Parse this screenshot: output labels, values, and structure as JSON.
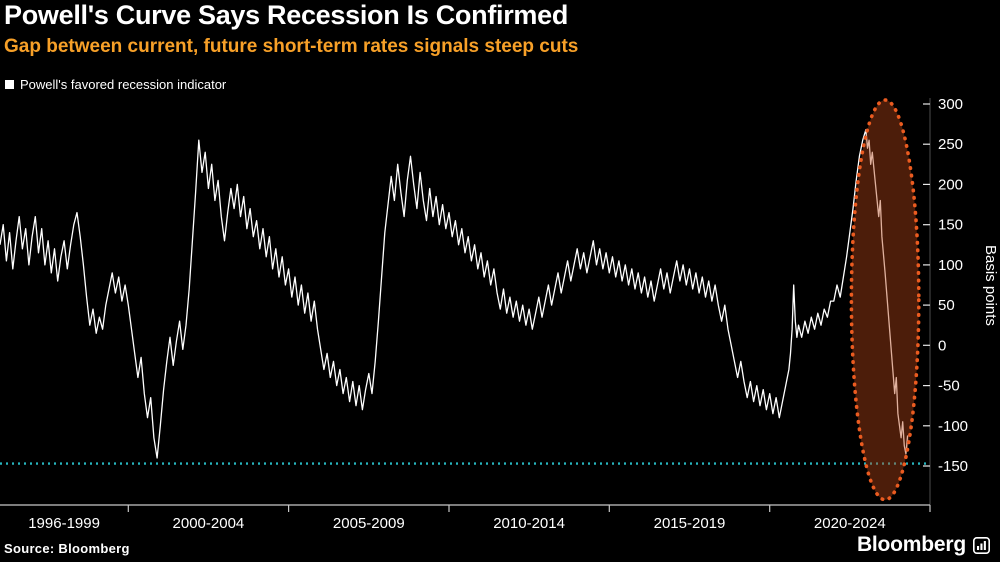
{
  "chart_data": {
    "type": "line",
    "title": "Powell's Curve Says Recession Is Confirmed",
    "subtitle": "Gap between current, future short-term rates signals steep cuts",
    "ylabel": "Basis points",
    "yticks": [
      300,
      250,
      200,
      150,
      100,
      50,
      0,
      -50,
      -100,
      -150
    ],
    "ylim": [
      -150,
      300
    ],
    "xlim": [
      1996,
      2025
    ],
    "x_tick_years": [
      2000,
      2005,
      2010,
      2015,
      2020,
      2025
    ],
    "x_labels": [
      {
        "label": "1996-1999",
        "center_year": 1998.0
      },
      {
        "label": "2000-2004",
        "center_year": 2002.5
      },
      {
        "label": "2005-2009",
        "center_year": 2007.5
      },
      {
        "label": "2010-2014",
        "center_year": 2012.5
      },
      {
        "label": "2015-2019",
        "center_year": 2017.5
      },
      {
        "label": "2020-2024",
        "center_year": 2022.5
      }
    ],
    "grid": false,
    "legend_position": "top-left",
    "reference_line": {
      "value": -147,
      "color": "#27b4bd",
      "style": "dotted"
    },
    "highlight_ellipse": {
      "year_start": 2022.55,
      "year_end": 2024.65,
      "value_top": 305,
      "value_bottom": -192,
      "stroke": "#ea5b20",
      "fill": "rgba(180,70,25,0.42)",
      "style": "dotted"
    },
    "series": [
      {
        "name": "Powell's favored recession indicator",
        "color": "#ffffff",
        "points": [
          [
            1996,
            125
          ],
          [
            1996.1,
            150
          ],
          [
            1996.2,
            105
          ],
          [
            1996.3,
            140
          ],
          [
            1996.4,
            95
          ],
          [
            1996.5,
            130
          ],
          [
            1996.6,
            160
          ],
          [
            1996.7,
            120
          ],
          [
            1996.8,
            145
          ],
          [
            1996.9,
            100
          ],
          [
            1997,
            135
          ],
          [
            1997.1,
            160
          ],
          [
            1997.2,
            115
          ],
          [
            1997.3,
            145
          ],
          [
            1997.4,
            100
          ],
          [
            1997.5,
            130
          ],
          [
            1997.6,
            90
          ],
          [
            1997.7,
            120
          ],
          [
            1997.8,
            80
          ],
          [
            1997.9,
            110
          ],
          [
            1998,
            130
          ],
          [
            1998.1,
            95
          ],
          [
            1998.2,
            125
          ],
          [
            1998.3,
            150
          ],
          [
            1998.4,
            165
          ],
          [
            1998.5,
            135
          ],
          [
            1998.6,
            100
          ],
          [
            1998.7,
            60
          ],
          [
            1998.8,
            25
          ],
          [
            1998.9,
            45
          ],
          [
            1999,
            15
          ],
          [
            1999.1,
            35
          ],
          [
            1999.2,
            20
          ],
          [
            1999.3,
            50
          ],
          [
            1999.4,
            70
          ],
          [
            1999.5,
            90
          ],
          [
            1999.6,
            65
          ],
          [
            1999.7,
            85
          ],
          [
            1999.8,
            55
          ],
          [
            1999.9,
            75
          ],
          [
            2000,
            50
          ],
          [
            2000.1,
            20
          ],
          [
            2000.2,
            -10
          ],
          [
            2000.3,
            -40
          ],
          [
            2000.4,
            -15
          ],
          [
            2000.5,
            -60
          ],
          [
            2000.6,
            -90
          ],
          [
            2000.7,
            -65
          ],
          [
            2000.8,
            -115
          ],
          [
            2000.9,
            -140
          ],
          [
            2001,
            -100
          ],
          [
            2001.1,
            -55
          ],
          [
            2001.2,
            -20
          ],
          [
            2001.3,
            10
          ],
          [
            2001.4,
            -25
          ],
          [
            2001.5,
            5
          ],
          [
            2001.6,
            30
          ],
          [
            2001.7,
            -5
          ],
          [
            2001.8,
            25
          ],
          [
            2001.9,
            70
          ],
          [
            2002,
            130
          ],
          [
            2002.1,
            190
          ],
          [
            2002.2,
            255
          ],
          [
            2002.3,
            215
          ],
          [
            2002.4,
            240
          ],
          [
            2002.5,
            195
          ],
          [
            2002.6,
            225
          ],
          [
            2002.7,
            180
          ],
          [
            2002.8,
            205
          ],
          [
            2002.9,
            160
          ],
          [
            2003,
            130
          ],
          [
            2003.1,
            165
          ],
          [
            2003.2,
            195
          ],
          [
            2003.3,
            170
          ],
          [
            2003.4,
            200
          ],
          [
            2003.5,
            160
          ],
          [
            2003.6,
            185
          ],
          [
            2003.7,
            145
          ],
          [
            2003.8,
            170
          ],
          [
            2003.9,
            135
          ],
          [
            2004,
            155
          ],
          [
            2004.1,
            120
          ],
          [
            2004.2,
            145
          ],
          [
            2004.3,
            110
          ],
          [
            2004.4,
            135
          ],
          [
            2004.5,
            95
          ],
          [
            2004.6,
            120
          ],
          [
            2004.7,
            85
          ],
          [
            2004.8,
            110
          ],
          [
            2004.9,
            75
          ],
          [
            2005,
            95
          ],
          [
            2005.1,
            60
          ],
          [
            2005.2,
            85
          ],
          [
            2005.3,
            50
          ],
          [
            2005.4,
            75
          ],
          [
            2005.5,
            40
          ],
          [
            2005.6,
            65
          ],
          [
            2005.7,
            30
          ],
          [
            2005.8,
            55
          ],
          [
            2005.9,
            20
          ],
          [
            2006,
            -5
          ],
          [
            2006.1,
            -30
          ],
          [
            2006.2,
            -10
          ],
          [
            2006.3,
            -40
          ],
          [
            2006.4,
            -20
          ],
          [
            2006.5,
            -50
          ],
          [
            2006.6,
            -30
          ],
          [
            2006.7,
            -60
          ],
          [
            2006.8,
            -40
          ],
          [
            2006.9,
            -70
          ],
          [
            2007,
            -45
          ],
          [
            2007.1,
            -75
          ],
          [
            2007.2,
            -50
          ],
          [
            2007.3,
            -80
          ],
          [
            2007.4,
            -55
          ],
          [
            2007.5,
            -35
          ],
          [
            2007.6,
            -60
          ],
          [
            2007.7,
            -20
          ],
          [
            2007.8,
            30
          ],
          [
            2007.9,
            85
          ],
          [
            2008,
            140
          ],
          [
            2008.1,
            175
          ],
          [
            2008.2,
            210
          ],
          [
            2008.3,
            180
          ],
          [
            2008.4,
            225
          ],
          [
            2008.5,
            190
          ],
          [
            2008.6,
            160
          ],
          [
            2008.7,
            205
          ],
          [
            2008.8,
            235
          ],
          [
            2008.9,
            200
          ],
          [
            2009,
            170
          ],
          [
            2009.1,
            215
          ],
          [
            2009.2,
            180
          ],
          [
            2009.3,
            155
          ],
          [
            2009.4,
            195
          ],
          [
            2009.5,
            160
          ],
          [
            2009.6,
            185
          ],
          [
            2009.7,
            150
          ],
          [
            2009.8,
            175
          ],
          [
            2009.9,
            145
          ],
          [
            2010,
            165
          ],
          [
            2010.1,
            135
          ],
          [
            2010.2,
            155
          ],
          [
            2010.3,
            125
          ],
          [
            2010.4,
            145
          ],
          [
            2010.5,
            115
          ],
          [
            2010.6,
            135
          ],
          [
            2010.7,
            105
          ],
          [
            2010.8,
            125
          ],
          [
            2010.9,
            95
          ],
          [
            2011,
            115
          ],
          [
            2011.1,
            85
          ],
          [
            2011.2,
            105
          ],
          [
            2011.3,
            75
          ],
          [
            2011.4,
            95
          ],
          [
            2011.5,
            65
          ],
          [
            2011.6,
            45
          ],
          [
            2011.7,
            70
          ],
          [
            2011.8,
            40
          ],
          [
            2011.9,
            60
          ],
          [
            2012,
            35
          ],
          [
            2012.1,
            55
          ],
          [
            2012.2,
            30
          ],
          [
            2012.3,
            50
          ],
          [
            2012.4,
            25
          ],
          [
            2012.5,
            45
          ],
          [
            2012.6,
            20
          ],
          [
            2012.7,
            40
          ],
          [
            2012.8,
            60
          ],
          [
            2012.9,
            35
          ],
          [
            2013,
            55
          ],
          [
            2013.1,
            75
          ],
          [
            2013.2,
            50
          ],
          [
            2013.3,
            70
          ],
          [
            2013.4,
            90
          ],
          [
            2013.5,
            65
          ],
          [
            2013.6,
            85
          ],
          [
            2013.7,
            105
          ],
          [
            2013.8,
            80
          ],
          [
            2013.9,
            100
          ],
          [
            2014,
            120
          ],
          [
            2014.1,
            95
          ],
          [
            2014.2,
            115
          ],
          [
            2014.3,
            90
          ],
          [
            2014.4,
            110
          ],
          [
            2014.5,
            130
          ],
          [
            2014.6,
            100
          ],
          [
            2014.7,
            120
          ],
          [
            2014.8,
            95
          ],
          [
            2014.9,
            115
          ],
          [
            2015,
            90
          ],
          [
            2015.1,
            110
          ],
          [
            2015.2,
            85
          ],
          [
            2015.3,
            105
          ],
          [
            2015.4,
            80
          ],
          [
            2015.5,
            100
          ],
          [
            2015.6,
            75
          ],
          [
            2015.7,
            95
          ],
          [
            2015.8,
            70
          ],
          [
            2015.9,
            90
          ],
          [
            2016,
            65
          ],
          [
            2016.1,
            85
          ],
          [
            2016.2,
            60
          ],
          [
            2016.3,
            80
          ],
          [
            2016.4,
            55
          ],
          [
            2016.5,
            75
          ],
          [
            2016.6,
            95
          ],
          [
            2016.7,
            70
          ],
          [
            2016.8,
            90
          ],
          [
            2016.9,
            65
          ],
          [
            2017,
            85
          ],
          [
            2017.1,
            105
          ],
          [
            2017.2,
            80
          ],
          [
            2017.3,
            100
          ],
          [
            2017.4,
            75
          ],
          [
            2017.5,
            95
          ],
          [
            2017.6,
            70
          ],
          [
            2017.7,
            90
          ],
          [
            2017.8,
            65
          ],
          [
            2017.9,
            85
          ],
          [
            2018,
            60
          ],
          [
            2018.1,
            80
          ],
          [
            2018.2,
            55
          ],
          [
            2018.3,
            75
          ],
          [
            2018.4,
            50
          ],
          [
            2018.5,
            30
          ],
          [
            2018.6,
            50
          ],
          [
            2018.7,
            20
          ],
          [
            2018.8,
            0
          ],
          [
            2018.9,
            -20
          ],
          [
            2019,
            -40
          ],
          [
            2019.1,
            -20
          ],
          [
            2019.2,
            -45
          ],
          [
            2019.3,
            -65
          ],
          [
            2019.4,
            -45
          ],
          [
            2019.5,
            -70
          ],
          [
            2019.6,
            -50
          ],
          [
            2019.7,
            -75
          ],
          [
            2019.8,
            -55
          ],
          [
            2019.9,
            -80
          ],
          [
            2020,
            -60
          ],
          [
            2020.1,
            -85
          ],
          [
            2020.2,
            -65
          ],
          [
            2020.3,
            -90
          ],
          [
            2020.4,
            -70
          ],
          [
            2020.5,
            -50
          ],
          [
            2020.6,
            -30
          ],
          [
            2020.65,
            -10
          ],
          [
            2020.7,
            20
          ],
          [
            2020.75,
            75
          ],
          [
            2020.8,
            30
          ],
          [
            2020.85,
            10
          ],
          [
            2020.9,
            25
          ],
          [
            2021,
            10
          ],
          [
            2021.1,
            30
          ],
          [
            2021.2,
            15
          ],
          [
            2021.3,
            35
          ],
          [
            2021.4,
            20
          ],
          [
            2021.5,
            40
          ],
          [
            2021.6,
            25
          ],
          [
            2021.7,
            45
          ],
          [
            2021.8,
            35
          ],
          [
            2021.9,
            55
          ],
          [
            2022,
            55
          ],
          [
            2022.1,
            75
          ],
          [
            2022.2,
            60
          ],
          [
            2022.3,
            85
          ],
          [
            2022.4,
            110
          ],
          [
            2022.5,
            140
          ],
          [
            2022.6,
            170
          ],
          [
            2022.7,
            205
          ],
          [
            2022.8,
            235
          ],
          [
            2022.9,
            255
          ],
          [
            2023,
            268
          ],
          [
            2023.05,
            245
          ],
          [
            2023.1,
            255
          ],
          [
            2023.15,
            225
          ],
          [
            2023.2,
            240
          ],
          [
            2023.3,
            200
          ],
          [
            2023.4,
            160
          ],
          [
            2023.45,
            180
          ],
          [
            2023.5,
            135
          ],
          [
            2023.6,
            90
          ],
          [
            2023.7,
            40
          ],
          [
            2023.8,
            -10
          ],
          [
            2023.9,
            -60
          ],
          [
            2023.95,
            -40
          ],
          [
            2024,
            -85
          ],
          [
            2024.1,
            -115
          ],
          [
            2024.15,
            -95
          ],
          [
            2024.2,
            -125
          ],
          [
            2024.25,
            -135
          ],
          [
            2024.3,
            -112
          ]
        ]
      }
    ]
  },
  "footer": {
    "source": "Source: Bloomberg",
    "brand": "Bloomberg"
  },
  "colors": {
    "background": "#000000",
    "title": "#ffffff",
    "subtitle": "#f7a028",
    "line": "#ffffff",
    "reference_line": "#27b4bd",
    "highlight": "#ea5b20",
    "axis_text": "#ffffff"
  }
}
